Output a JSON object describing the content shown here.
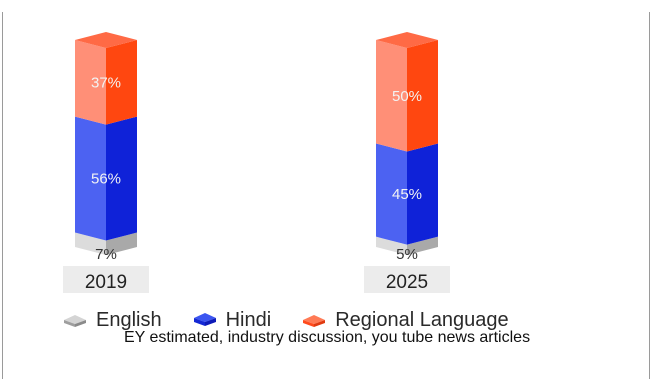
{
  "chart_data": {
    "type": "bar",
    "stacked": true,
    "categories": [
      "2019",
      "2025"
    ],
    "series": [
      {
        "name": "English",
        "values": [
          7,
          5
        ],
        "labels": [
          "7%",
          "5%"
        ],
        "color": "#b9b9b9"
      },
      {
        "name": "Hindi",
        "values": [
          56,
          45
        ],
        "labels": [
          "56%",
          "45%"
        ],
        "color": "#1f33e6"
      },
      {
        "name": "Regional Language",
        "values": [
          37,
          50
        ],
        "labels": [
          "37%",
          "50%"
        ],
        "color": "#ff4a1c"
      }
    ],
    "legend_position": "bottom",
    "grid": false
  },
  "caption": "EY estimated, industry discussion, you tube news articles",
  "colors": {
    "english_light": "#dcdcdc",
    "english_dark": "#a9a9a9",
    "hindi_light": "#4c62f2",
    "hindi_dark": "#0f22d8",
    "regional_light": "#ff8f77",
    "regional_dark": "#ff4710",
    "regional_top": "#ff6a45"
  }
}
